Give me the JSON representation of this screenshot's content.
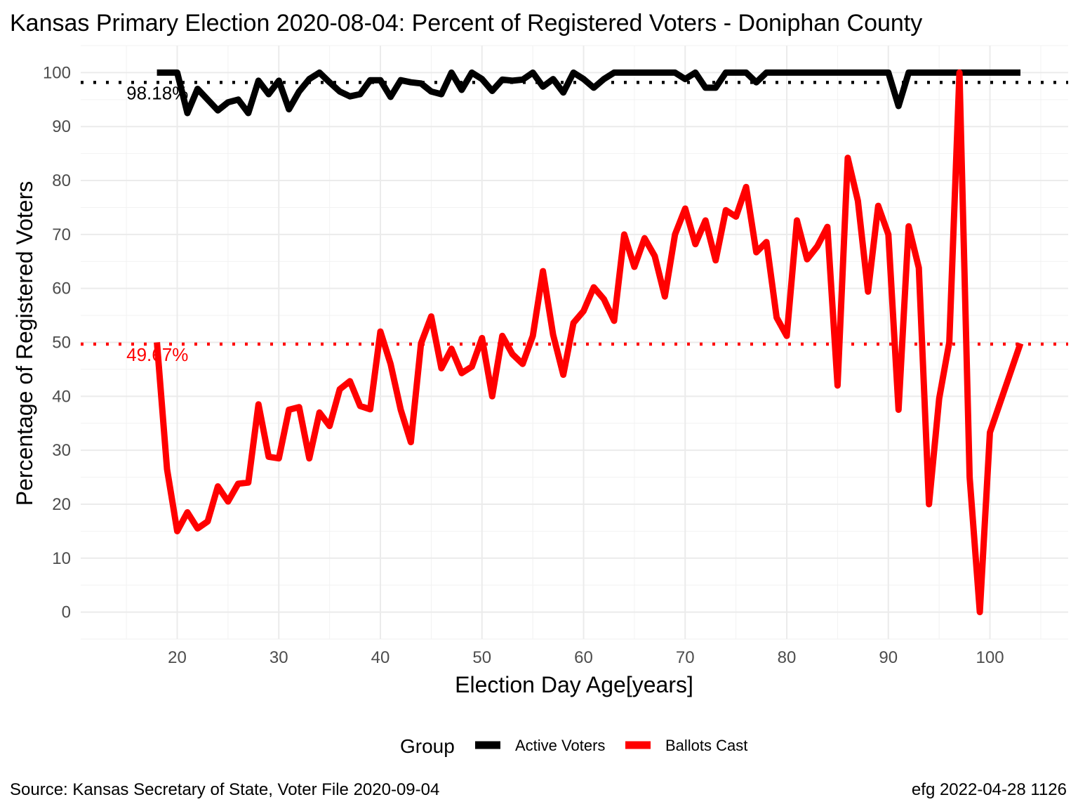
{
  "chart_data": {
    "type": "line",
    "title": "Kansas Primary Election 2020-08-04:  Percent of Registered Voters - Doniphan County",
    "xlabel": "Election Day Age[years]",
    "ylabel": "Percentage of Registered Voters",
    "xlim": [
      10.5,
      107.7
    ],
    "ylim": [
      -5,
      105
    ],
    "x_ticks": [
      20,
      30,
      40,
      50,
      60,
      70,
      80,
      90,
      100
    ],
    "y_ticks": [
      0,
      10,
      20,
      30,
      40,
      50,
      60,
      70,
      80,
      90,
      100
    ],
    "grid": true,
    "legend": {
      "title": "Group",
      "position": "bottom",
      "entries": [
        {
          "label": "Active Voters",
          "color": "#000000"
        },
        {
          "label": "Ballots Cast",
          "color": "#ff0000"
        }
      ]
    },
    "series": [
      {
        "name": "Active Voters",
        "color": "#000000",
        "x": [
          18,
          19,
          20,
          21,
          22,
          23,
          24,
          25,
          26,
          27,
          28,
          29,
          30,
          31,
          32,
          33,
          34,
          35,
          36,
          37,
          38,
          39,
          40,
          41,
          42,
          43,
          44,
          45,
          46,
          47,
          48,
          49,
          50,
          51,
          52,
          53,
          54,
          55,
          56,
          57,
          58,
          59,
          60,
          61,
          62,
          63,
          64,
          65,
          66,
          67,
          68,
          69,
          70,
          71,
          72,
          73,
          74,
          75,
          76,
          77,
          78,
          79,
          80,
          81,
          82,
          83,
          84,
          85,
          86,
          87,
          88,
          89,
          90,
          91,
          92,
          93,
          94,
          95,
          96,
          97,
          98,
          99,
          100,
          101,
          102,
          103
        ],
        "values": [
          100,
          100,
          100,
          92.5,
          97,
          95,
          93,
          94.5,
          95,
          92.5,
          98.5,
          96,
          98.5,
          93.2,
          96.5,
          98.8,
          100,
          98.2,
          96.5,
          95.6,
          96,
          98.6,
          98.6,
          95.5,
          98.6,
          98.2,
          98,
          96.5,
          96,
          100,
          96.8,
          100,
          98.8,
          96.6,
          98.7,
          98.5,
          98.7,
          100,
          97.4,
          98.8,
          96.3,
          100,
          98.8,
          97.2,
          98.8,
          100,
          100,
          100,
          100,
          100,
          100,
          100,
          98.8,
          100,
          97.2,
          97.2,
          100,
          100,
          100,
          98.2,
          100,
          100,
          100,
          100,
          100,
          100,
          100,
          100,
          100,
          100,
          100,
          100,
          100,
          93.8,
          100,
          100,
          100,
          100,
          100,
          100,
          100,
          100,
          100,
          100,
          100,
          100
        ]
      },
      {
        "name": "Ballots Cast",
        "color": "#ff0000",
        "x": [
          18,
          19,
          20,
          21,
          22,
          23,
          24,
          25,
          26,
          27,
          28,
          29,
          30,
          31,
          32,
          33,
          34,
          35,
          36,
          37,
          38,
          39,
          40,
          41,
          42,
          43,
          44,
          45,
          46,
          47,
          48,
          49,
          50,
          51,
          52,
          53,
          54,
          55,
          56,
          57,
          58,
          59,
          60,
          61,
          62,
          63,
          64,
          65,
          66,
          67,
          68,
          69,
          70,
          71,
          72,
          73,
          74,
          75,
          76,
          77,
          78,
          79,
          80,
          81,
          82,
          83,
          84,
          85,
          86,
          87,
          88,
          89,
          90,
          91,
          92,
          93,
          94,
          95,
          96,
          97,
          98,
          99,
          100,
          101,
          102,
          103
        ],
        "values": [
          50,
          26.5,
          15,
          18.5,
          15.5,
          16.8,
          23.3,
          20.5,
          23.8,
          24,
          38.5,
          28.8,
          28.5,
          37.5,
          38,
          28.5,
          37,
          34.5,
          41.3,
          42.8,
          38.2,
          37.6,
          52,
          46,
          37.5,
          31.5,
          49.8,
          54.8,
          45.2,
          48.8,
          44.3,
          45.5,
          50.8,
          40,
          51.2,
          47.8,
          46,
          51.2,
          63.2,
          51.4,
          44,
          53.6,
          55.8,
          60.2,
          58,
          54,
          70,
          64,
          69.3,
          66,
          58.5,
          70,
          74.8,
          68.2,
          72.6,
          65.2,
          74.5,
          73.3,
          78.8,
          66.7,
          68.6,
          54.6,
          51.2,
          72.6,
          65.4,
          67.8,
          71.4,
          42,
          84.2,
          76.2,
          59.4,
          75.3,
          70,
          37.5,
          71.5,
          63.8,
          20,
          39.6,
          50,
          100,
          25,
          0,
          33.3,
          38.8,
          44.3,
          49.8
        ]
      }
    ],
    "reference_lines": [
      {
        "y": 98.18,
        "label": "98.18%",
        "color": "#000000"
      },
      {
        "y": 49.67,
        "label": "49.67%",
        "color": "#ff0000"
      }
    ]
  },
  "footer": {
    "source": "Source:  Kansas Secretary of State, Voter File  2020-09-04",
    "credit": "efg 2022-04-28 1126"
  }
}
